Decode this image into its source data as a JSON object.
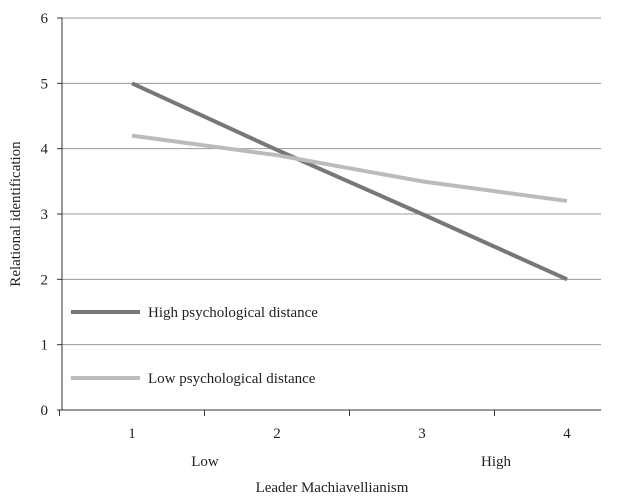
{
  "chart_data": {
    "type": "line",
    "title": "",
    "xlabel": "Leader Machiavellianism",
    "ylabel": "Relational identification",
    "x": [
      1,
      2,
      3,
      4
    ],
    "x_ticks": [
      "1",
      "2",
      "3",
      "4"
    ],
    "x_level_labels": {
      "low": "Low",
      "high": "High"
    },
    "ylim": [
      0,
      6
    ],
    "y_ticks": [
      "0",
      "1",
      "2",
      "3",
      "4",
      "5",
      "6"
    ],
    "grid": "horizontal",
    "legend_position": "lower-left",
    "series": [
      {
        "name": "High psychological distance",
        "color": "#777777",
        "values": [
          5.0,
          3.98,
          3.0,
          2.0
        ]
      },
      {
        "name": "Low psychological distance",
        "color": "#bbbbbb",
        "values": [
          4.2,
          3.9,
          3.5,
          3.2
        ]
      }
    ]
  }
}
